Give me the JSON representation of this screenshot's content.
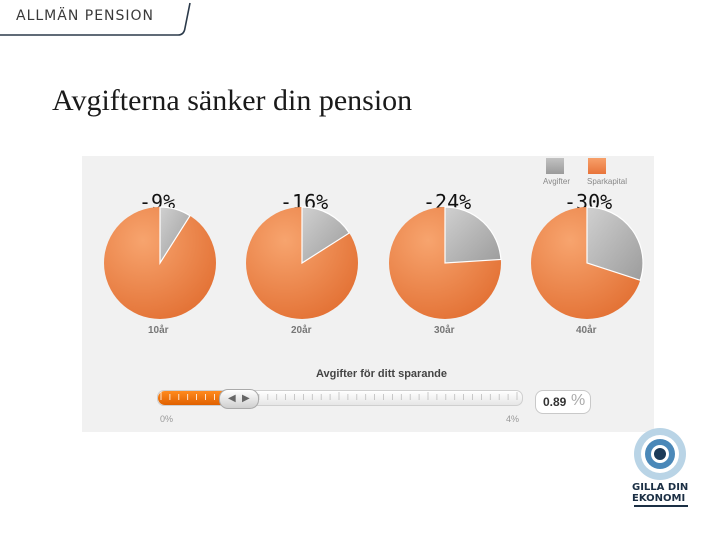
{
  "header": {
    "brand": "ALLMÄN PENSION"
  },
  "slide": {
    "title": "Avgifterna sänker din pension"
  },
  "legend": {
    "fees": "Avgifter",
    "capital": "Sparkapital",
    "fee_color": "#a9a9a9",
    "capital_color": "#f28a4a"
  },
  "charts": [
    {
      "percent_label": "-9%",
      "age_label": "10år",
      "fee_share": 0.09
    },
    {
      "percent_label": "-16%",
      "age_label": "20år",
      "fee_share": 0.16
    },
    {
      "percent_label": "-24%",
      "age_label": "30år",
      "fee_share": 0.24
    },
    {
      "percent_label": "-30%",
      "age_label": "40år",
      "fee_share": 0.3
    }
  ],
  "slider": {
    "title": "Avgifter för ditt sparande",
    "min_label": "0%",
    "max_label": "4%",
    "value": "0.89",
    "unit": "%",
    "fraction": 0.2225
  },
  "logo": {
    "line1": "GILLA DIN",
    "line2": "EKONOMI"
  },
  "chart_data": {
    "type": "pie",
    "categories": [
      "10år",
      "20år",
      "30år",
      "40år"
    ],
    "series": [
      {
        "name": "Avgifter",
        "values": [
          9,
          16,
          24,
          30
        ]
      },
      {
        "name": "Sparkapital",
        "values": [
          91,
          84,
          76,
          70
        ]
      }
    ],
    "title": "",
    "xlabel": "",
    "ylabel": "",
    "legend": "top-right"
  }
}
